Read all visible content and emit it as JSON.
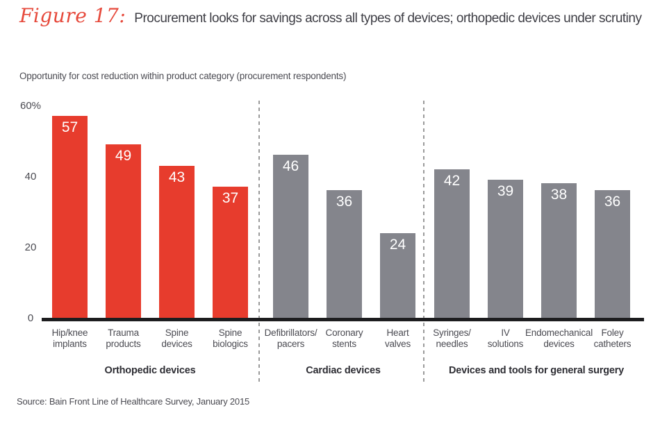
{
  "header": {
    "figure_label": "Figure 17:",
    "title": "Procurement looks for savings across all types of devices; orthopedic devices under scrutiny",
    "subtitle": "Opportunity for cost reduction within product category (procurement respondents)"
  },
  "footer": {
    "source": "Source: Bain Front Line of Healthcare Survey, January 2015"
  },
  "colors": {
    "bar_red": "#e73c2d",
    "bar_gray": "#84858c",
    "axis_line": "#1d1d1f",
    "separator": "#9a9a9a",
    "value_label": "#ffffff",
    "figure_label_red": "#e6493b",
    "text_dark": "#3e3e45",
    "text_body": "#4a4a51"
  },
  "chart_data": {
    "type": "bar",
    "title": "Opportunity for cost reduction within product category (procurement respondents)",
    "xlabel": "",
    "ylabel": "",
    "ylim": [
      0,
      60
    ],
    "grid": false,
    "legend": "none",
    "yticks": [
      {
        "value": 60,
        "label": "60%"
      },
      {
        "value": 40,
        "label": "40"
      },
      {
        "value": 20,
        "label": "20"
      },
      {
        "value": 0,
        "label": "0"
      }
    ],
    "groups": [
      {
        "name": "Orthopedic devices",
        "color_key": "bar_red",
        "bars": [
          {
            "label_lines": [
              "Hip/knee",
              "implants"
            ],
            "value": 57
          },
          {
            "label_lines": [
              "Trauma",
              "products"
            ],
            "value": 49
          },
          {
            "label_lines": [
              "Spine",
              "devices"
            ],
            "value": 43
          },
          {
            "label_lines": [
              "Spine",
              "biologics"
            ],
            "value": 37
          }
        ]
      },
      {
        "name": "Cardiac devices",
        "color_key": "bar_gray",
        "bars": [
          {
            "label_lines": [
              "Defibrillators/",
              "pacers"
            ],
            "value": 46
          },
          {
            "label_lines": [
              "Coronary",
              "stents"
            ],
            "value": 36
          },
          {
            "label_lines": [
              "Heart",
              "valves"
            ],
            "value": 24
          }
        ]
      },
      {
        "name": "Devices and tools for general surgery",
        "color_key": "bar_gray",
        "bars": [
          {
            "label_lines": [
              "Syringes/",
              "needles"
            ],
            "value": 42
          },
          {
            "label_lines": [
              "IV",
              "solutions"
            ],
            "value": 39
          },
          {
            "label_lines": [
              "Endomechanical",
              "devices"
            ],
            "value": 38
          },
          {
            "label_lines": [
              "Foley",
              "catheters"
            ],
            "value": 36
          }
        ]
      }
    ]
  }
}
